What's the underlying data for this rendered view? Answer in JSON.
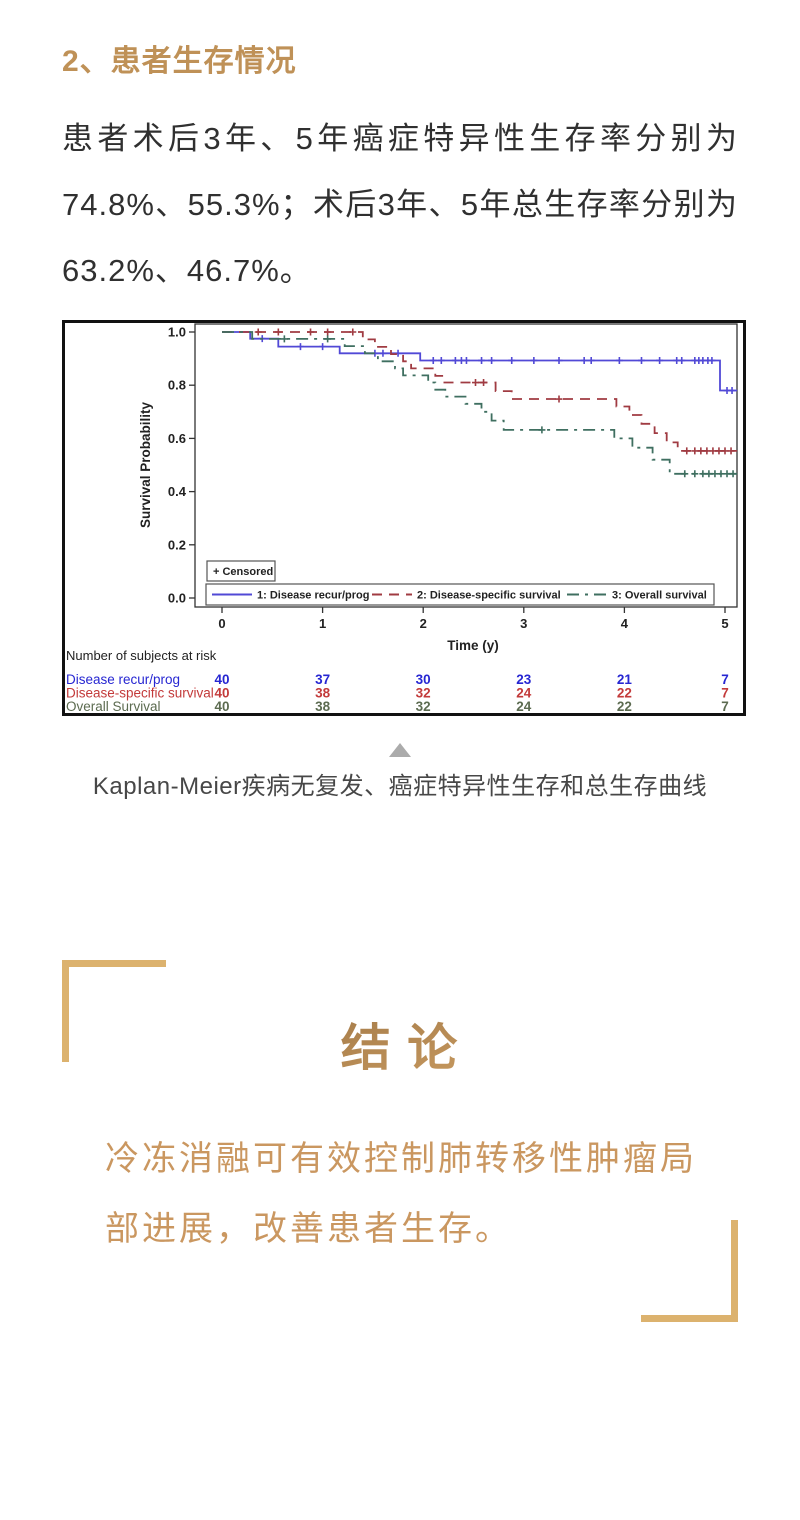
{
  "theme": {
    "accent_gold": "#BF9157",
    "body_text": "#303030",
    "caption_gray": "#474747",
    "conclusion_text": "#CA9760",
    "bracket": "#DCB26E",
    "title_grad_top": "#8C6538",
    "title_grad_bottom": "#D2A367"
  },
  "section": {
    "heading": "2、患者生存情况",
    "paragraph": "患者术后3年、5年癌症特异性生存率分别为74.8%、55.3%；术后3年、5年总生存率分别为63.2%、46.7%。"
  },
  "figure": {
    "caption": "Kaplan-Meier疾病无复发、癌症特异性生存和总生存曲线"
  },
  "chart_data": {
    "type": "line",
    "subtype": "kaplan-meier-step",
    "title": "",
    "xlabel": "Time (y)",
    "ylabel": "Survival Probability",
    "xlim": [
      0,
      5.15
    ],
    "ylim": [
      0,
      1.0
    ],
    "xticks": [
      0,
      1,
      2,
      3,
      4,
      5
    ],
    "yticks": [
      0.0,
      0.2,
      0.4,
      0.6,
      0.8,
      1.0
    ],
    "grid": false,
    "legend_position": "bottom-inside",
    "censored_legend": "+ Censored",
    "at_risk_title": "Number of subjects at risk",
    "series": [
      {
        "name": "1: Disease recur/prog",
        "risk_label": "Disease recur/prog",
        "color": "#5149D6",
        "risk_color": "#2626D2",
        "dash": "solid",
        "steps": [
          [
            0,
            1
          ],
          [
            0.28,
            1
          ],
          [
            0.28,
            0.975
          ],
          [
            0.56,
            0.975
          ],
          [
            0.56,
            0.945
          ],
          [
            1.17,
            0.945
          ],
          [
            1.17,
            0.92
          ],
          [
            1.97,
            0.92
          ],
          [
            1.97,
            0.893
          ],
          [
            4.95,
            0.893
          ],
          [
            4.95,
            0.78
          ],
          [
            5.12,
            0.78
          ]
        ],
        "censors": [
          [
            0.4,
            0.975
          ],
          [
            0.78,
            0.945
          ],
          [
            1.0,
            0.945
          ],
          [
            1.52,
            0.92
          ],
          [
            1.6,
            0.92
          ],
          [
            1.75,
            0.92
          ],
          [
            2.1,
            0.893
          ],
          [
            2.18,
            0.893
          ],
          [
            2.32,
            0.893
          ],
          [
            2.38,
            0.893
          ],
          [
            2.43,
            0.893
          ],
          [
            2.58,
            0.893
          ],
          [
            2.68,
            0.893
          ],
          [
            2.88,
            0.893
          ],
          [
            3.1,
            0.893
          ],
          [
            3.35,
            0.893
          ],
          [
            3.6,
            0.893
          ],
          [
            3.67,
            0.893
          ],
          [
            3.95,
            0.893
          ],
          [
            4.17,
            0.893
          ],
          [
            4.35,
            0.893
          ],
          [
            4.52,
            0.893
          ],
          [
            4.57,
            0.893
          ],
          [
            4.7,
            0.893
          ],
          [
            4.74,
            0.893
          ],
          [
            4.78,
            0.893
          ],
          [
            4.83,
            0.893
          ],
          [
            4.87,
            0.893
          ],
          [
            5.02,
            0.78
          ],
          [
            5.07,
            0.78
          ]
        ],
        "at_risk": [
          40,
          37,
          30,
          23,
          21,
          7
        ]
      },
      {
        "name": "2: Disease-specific survival",
        "risk_label": "Disease-specific survival",
        "color": "#A03B42",
        "risk_color": "#C33A3A",
        "dash": "dashed",
        "steps": [
          [
            0,
            1
          ],
          [
            1.4,
            1
          ],
          [
            1.4,
            0.972
          ],
          [
            1.52,
            0.972
          ],
          [
            1.52,
            0.944
          ],
          [
            1.68,
            0.944
          ],
          [
            1.68,
            0.917
          ],
          [
            1.8,
            0.917
          ],
          [
            1.8,
            0.89
          ],
          [
            1.88,
            0.89
          ],
          [
            1.88,
            0.863
          ],
          [
            2.12,
            0.863
          ],
          [
            2.12,
            0.835
          ],
          [
            2.2,
            0.835
          ],
          [
            2.2,
            0.81
          ],
          [
            2.72,
            0.81
          ],
          [
            2.72,
            0.778
          ],
          [
            2.88,
            0.778
          ],
          [
            2.88,
            0.748
          ],
          [
            3.92,
            0.748
          ],
          [
            3.92,
            0.72
          ],
          [
            4.05,
            0.72
          ],
          [
            4.05,
            0.688
          ],
          [
            4.17,
            0.688
          ],
          [
            4.17,
            0.655
          ],
          [
            4.3,
            0.655
          ],
          [
            4.3,
            0.62
          ],
          [
            4.42,
            0.62
          ],
          [
            4.42,
            0.585
          ],
          [
            4.53,
            0.585
          ],
          [
            4.53,
            0.553
          ],
          [
            5.12,
            0.553
          ]
        ],
        "censors": [
          [
            0.36,
            1
          ],
          [
            0.56,
            1
          ],
          [
            0.88,
            1
          ],
          [
            1.05,
            1
          ],
          [
            1.3,
            1
          ],
          [
            2.52,
            0.81
          ],
          [
            2.6,
            0.81
          ],
          [
            3.35,
            0.748
          ],
          [
            4.62,
            0.553
          ],
          [
            4.7,
            0.553
          ],
          [
            4.76,
            0.553
          ],
          [
            4.82,
            0.553
          ],
          [
            4.88,
            0.553
          ],
          [
            4.94,
            0.553
          ],
          [
            5.0,
            0.553
          ],
          [
            5.06,
            0.553
          ]
        ],
        "at_risk": [
          40,
          38,
          32,
          24,
          22,
          7
        ]
      },
      {
        "name": "3: Overall survival",
        "risk_label": "Overall Survival",
        "color": "#3F6F60",
        "risk_color": "#5C6B50",
        "dash": "dashdot",
        "steps": [
          [
            0,
            1
          ],
          [
            0.3,
            1
          ],
          [
            0.3,
            0.974
          ],
          [
            1.22,
            0.974
          ],
          [
            1.22,
            0.947
          ],
          [
            1.42,
            0.947
          ],
          [
            1.42,
            0.92
          ],
          [
            1.55,
            0.92
          ],
          [
            1.55,
            0.89
          ],
          [
            1.72,
            0.89
          ],
          [
            1.72,
            0.863
          ],
          [
            1.8,
            0.863
          ],
          [
            1.8,
            0.837
          ],
          [
            2.05,
            0.837
          ],
          [
            2.05,
            0.81
          ],
          [
            2.12,
            0.81
          ],
          [
            2.12,
            0.783
          ],
          [
            2.22,
            0.783
          ],
          [
            2.22,
            0.757
          ],
          [
            2.42,
            0.757
          ],
          [
            2.42,
            0.73
          ],
          [
            2.58,
            0.73
          ],
          [
            2.58,
            0.7
          ],
          [
            2.68,
            0.7
          ],
          [
            2.68,
            0.667
          ],
          [
            2.8,
            0.667
          ],
          [
            2.8,
            0.632
          ],
          [
            3.9,
            0.632
          ],
          [
            3.9,
            0.6
          ],
          [
            4.08,
            0.6
          ],
          [
            4.08,
            0.565
          ],
          [
            4.28,
            0.565
          ],
          [
            4.28,
            0.52
          ],
          [
            4.45,
            0.52
          ],
          [
            4.45,
            0.467
          ],
          [
            5.12,
            0.467
          ]
        ],
        "censors": [
          [
            0.62,
            0.974
          ],
          [
            1.05,
            0.974
          ],
          [
            3.18,
            0.632
          ],
          [
            4.6,
            0.467
          ],
          [
            4.7,
            0.467
          ],
          [
            4.78,
            0.467
          ],
          [
            4.84,
            0.467
          ],
          [
            4.9,
            0.467
          ],
          [
            4.96,
            0.467
          ],
          [
            5.02,
            0.467
          ],
          [
            5.08,
            0.467
          ]
        ],
        "at_risk": [
          40,
          38,
          32,
          24,
          22,
          7
        ]
      }
    ]
  },
  "conclusion": {
    "title": "结 论",
    "body": "冷冻消融可有效控制肺转移性肿瘤局部进展，改善患者生存。"
  }
}
